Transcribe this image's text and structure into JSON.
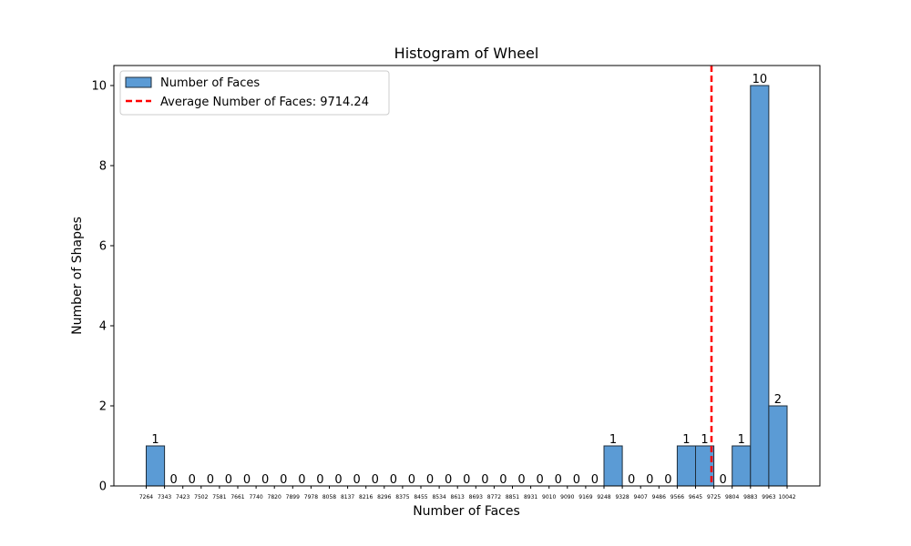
{
  "chart_data": {
    "type": "bar",
    "title": "Histogram of Wheel",
    "xlabel": "Number of Faces",
    "ylabel": "Number of Shapes",
    "bin_edges": [
      7264,
      7343,
      7423,
      7502,
      7581,
      7661,
      7740,
      7820,
      7899,
      7978,
      8058,
      8137,
      8216,
      8296,
      8375,
      8455,
      8534,
      8613,
      8693,
      8772,
      8851,
      8931,
      9010,
      9090,
      9169,
      9248,
      9328,
      9407,
      9486,
      9566,
      9645,
      9725,
      9804,
      9883,
      9963,
      10042
    ],
    "values": [
      1,
      0,
      0,
      0,
      0,
      0,
      0,
      0,
      0,
      0,
      0,
      0,
      0,
      0,
      0,
      0,
      0,
      0,
      0,
      0,
      0,
      0,
      0,
      0,
      0,
      1,
      0,
      0,
      0,
      1,
      1,
      0,
      1,
      10,
      2
    ],
    "ylim": [
      0,
      10.5
    ],
    "yticks": [
      0,
      2,
      4,
      6,
      8,
      10
    ],
    "average": 9714.24,
    "bar_color": "#5b9bd5",
    "bar_edge_color": "#1f2d3a",
    "average_line_color": "#ff0000",
    "legend": {
      "location": "top-left",
      "entries": [
        {
          "label": "Number of Faces",
          "kind": "bar"
        },
        {
          "label": "Average Number of Faces: 9714.24",
          "kind": "dashed-line"
        }
      ]
    },
    "grid": false
  }
}
